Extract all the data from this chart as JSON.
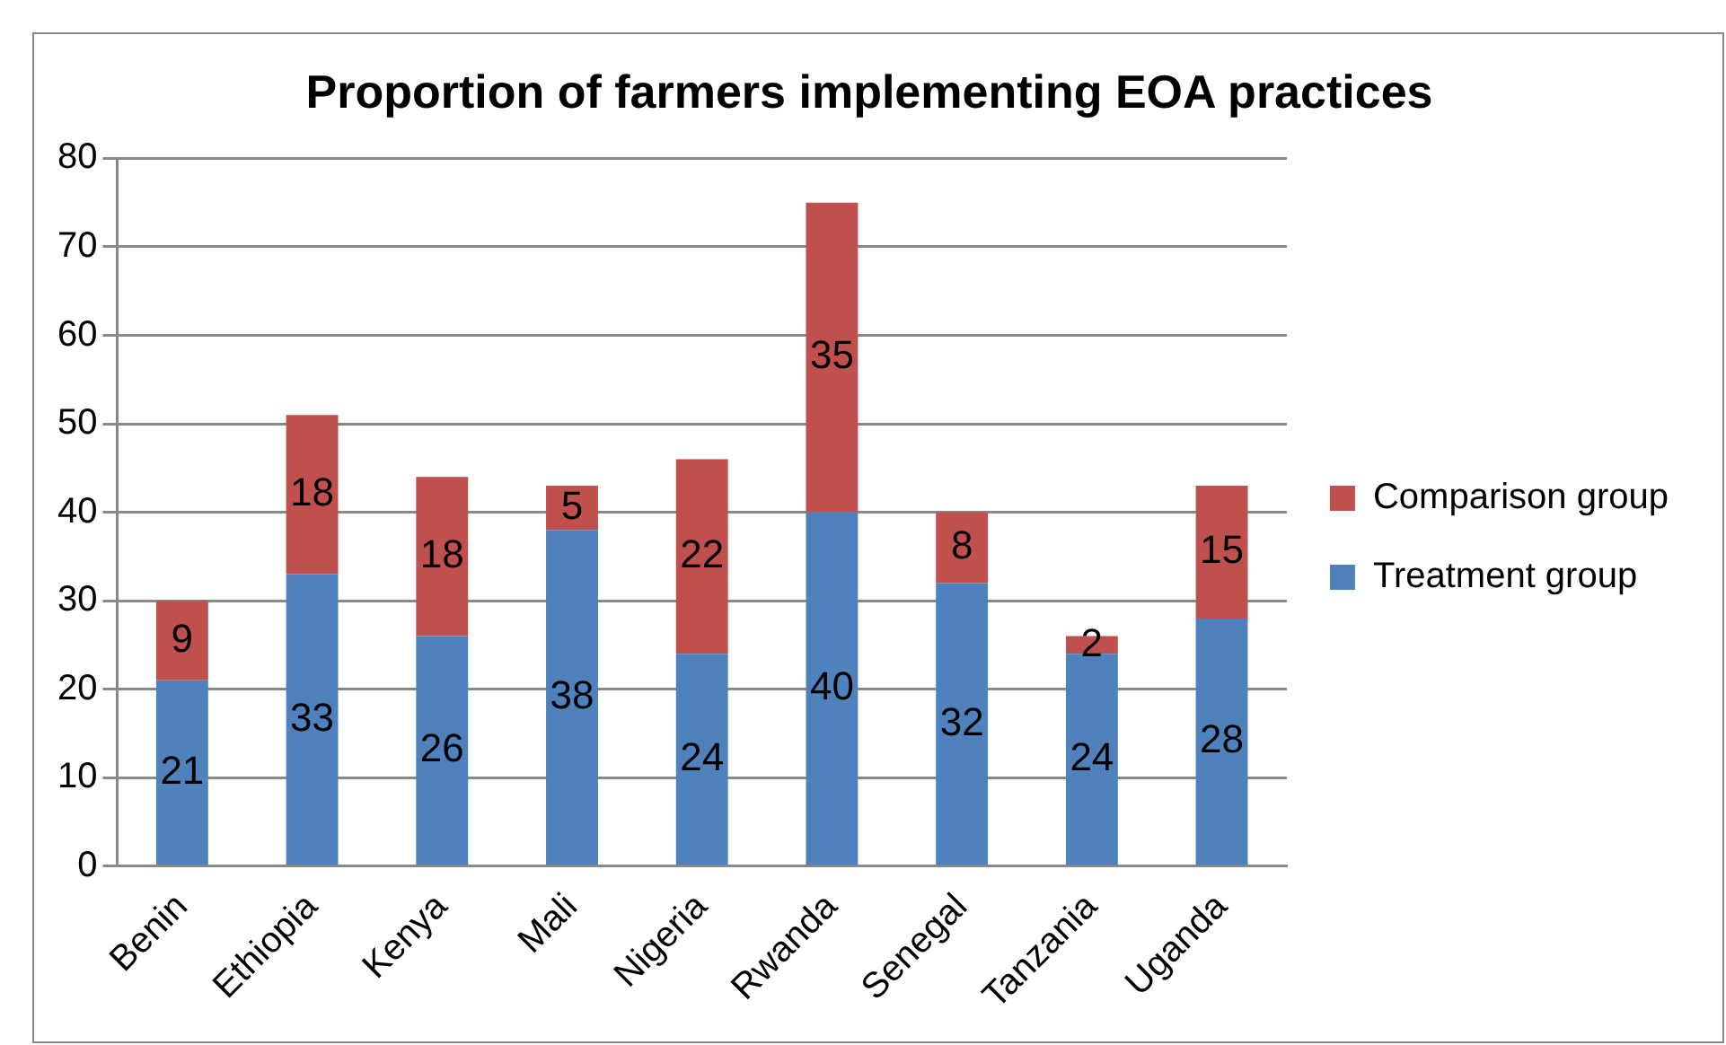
{
  "chart_data": {
    "type": "bar",
    "title": "Proportion of farmers implementing EOA practices",
    "categories": [
      "Benin",
      "Ethiopia",
      "Kenya",
      "Mali",
      "Nigeria",
      "Rwanda",
      "Senegal",
      "Tanzania",
      "Uganda"
    ],
    "series": [
      {
        "name": "Treatment group",
        "color": "#4f81bd",
        "values": [
          21,
          33,
          26,
          38,
          24,
          40,
          32,
          24,
          28
        ]
      },
      {
        "name": "Comparison group",
        "color": "#c0504d",
        "values": [
          9,
          18,
          18,
          5,
          22,
          35,
          8,
          2,
          15
        ]
      }
    ],
    "stacked": true,
    "ylim": [
      0,
      80
    ],
    "yticks": [
      0,
      10,
      20,
      30,
      40,
      50,
      60,
      70,
      80
    ],
    "grid": "y",
    "legend": "right",
    "data_labels": true
  }
}
